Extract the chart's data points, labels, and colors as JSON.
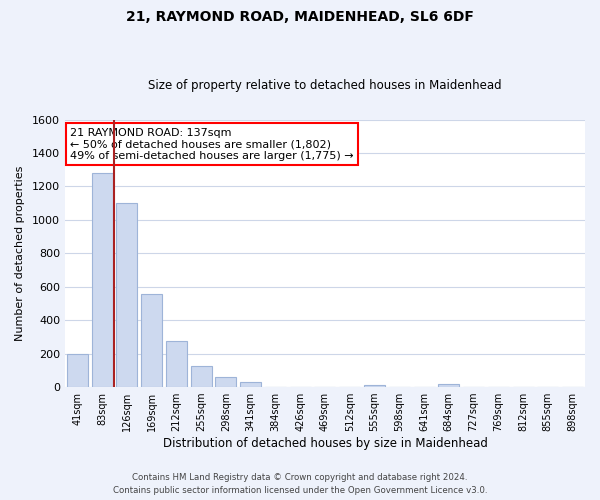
{
  "title1": "21, RAYMOND ROAD, MAIDENHEAD, SL6 6DF",
  "title2": "Size of property relative to detached houses in Maidenhead",
  "xlabel": "Distribution of detached houses by size in Maidenhead",
  "ylabel": "Number of detached properties",
  "bar_labels": [
    "41sqm",
    "83sqm",
    "126sqm",
    "169sqm",
    "212sqm",
    "255sqm",
    "298sqm",
    "341sqm",
    "384sqm",
    "426sqm",
    "469sqm",
    "512sqm",
    "555sqm",
    "598sqm",
    "641sqm",
    "684sqm",
    "727sqm",
    "769sqm",
    "812sqm",
    "855sqm",
    "898sqm"
  ],
  "bar_values": [
    200,
    1280,
    1100,
    555,
    275,
    125,
    60,
    30,
    0,
    0,
    0,
    0,
    15,
    0,
    0,
    20,
    0,
    0,
    0,
    0,
    0
  ],
  "bar_color": "#cdd9ef",
  "bar_edge_color": "#9eb4d8",
  "vline_color": "#aa2222",
  "vline_x_index": 2,
  "ylim": [
    0,
    1600
  ],
  "yticks": [
    0,
    200,
    400,
    600,
    800,
    1000,
    1200,
    1400,
    1600
  ],
  "annotation_title": "21 RAYMOND ROAD: 137sqm",
  "annotation_line1": "← 50% of detached houses are smaller (1,802)",
  "annotation_line2": "49% of semi-detached houses are larger (1,775) →",
  "footer1": "Contains HM Land Registry data © Crown copyright and database right 2024.",
  "footer2": "Contains public sector information licensed under the Open Government Licence v3.0.",
  "bg_color": "#eef2fb",
  "plot_bg_color": "#ffffff",
  "grid_color": "#cdd6e8"
}
